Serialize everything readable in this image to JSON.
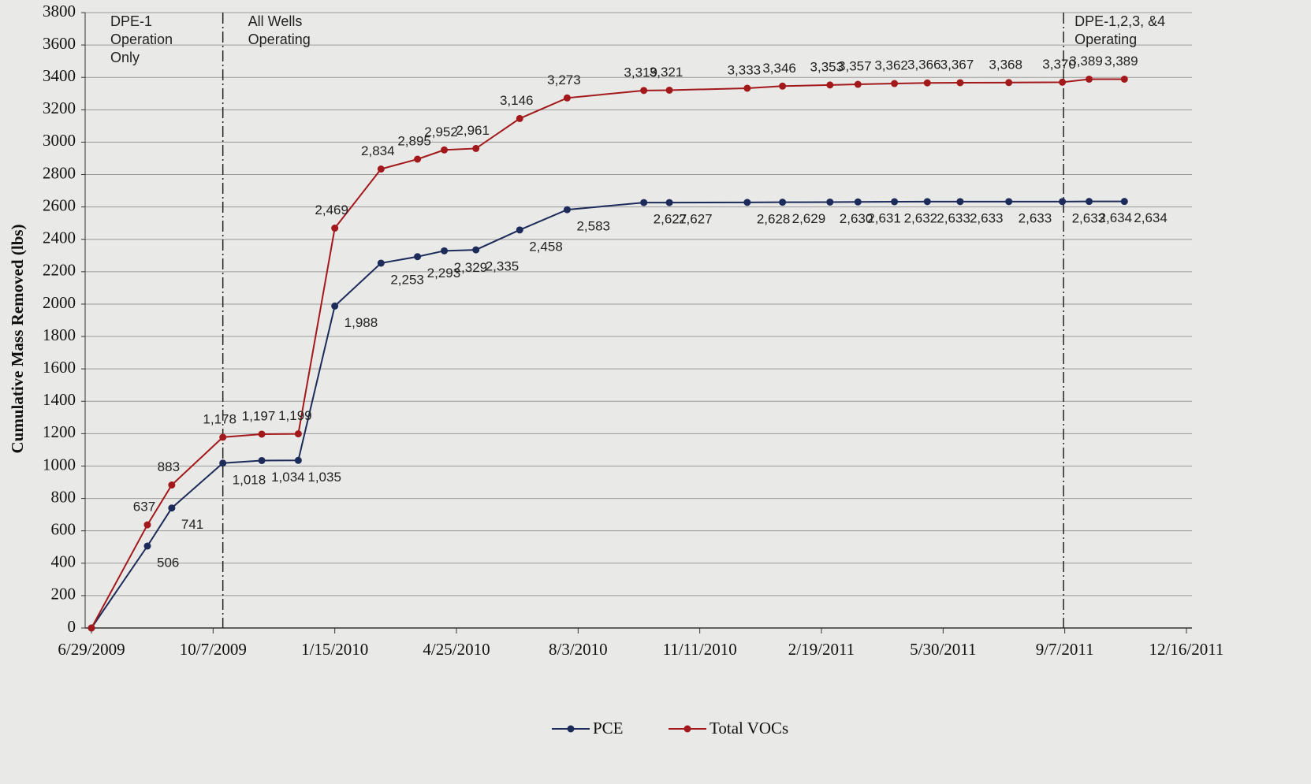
{
  "chart_data": {
    "type": "line",
    "y_label": "Cumulative Mass Removed (lbs)",
    "x": [
      "6/29/2009",
      "8/14/2009",
      "9/3/2009",
      "10/15/2009",
      "11/16/2009",
      "12/16/2009",
      "1/15/2010",
      "2/22/2010",
      "3/24/2010",
      "4/15/2010",
      "5/11/2010",
      "6/16/2010",
      "7/25/2010",
      "9/26/2010",
      "10/17/2010",
      "12/20/2010",
      "1/18/2011",
      "2/26/2011",
      "3/21/2011",
      "4/20/2011",
      "5/17/2011",
      "6/13/2011",
      "7/23/2011",
      "9/5/2011",
      "9/27/2011",
      "10/26/2011"
    ],
    "series": [
      {
        "name": "PCE",
        "color": "#1c2b5a",
        "values": [
          0,
          506,
          741,
          1018,
          1034,
          1035,
          1988,
          2253,
          2293,
          2329,
          2335,
          2458,
          2583,
          2627,
          2627,
          2628,
          2629,
          2630,
          2631,
          2632,
          2633,
          2633,
          2633,
          2633,
          2634,
          2634
        ],
        "value_labels": [
          null,
          "506",
          "741",
          "1,018",
          "1,034",
          "1,035",
          "1,988",
          "2,253",
          "2,293",
          "2,329",
          "2,335",
          "2,458",
          "2,583",
          "2,627",
          "2,627",
          "2,628",
          "2,629",
          "2,630",
          "2,631",
          "2,632",
          "2,633",
          "2,633",
          "2,633",
          "2,633",
          "2,634",
          "2,634"
        ]
      },
      {
        "name": "Total VOCs",
        "color": "#a3191b",
        "values": [
          0,
          637,
          883,
          1178,
          1197,
          1199,
          2469,
          2834,
          2895,
          2952,
          2961,
          3146,
          3273,
          3319,
          3321,
          3333,
          3346,
          3353,
          3357,
          3362,
          3366,
          3367,
          3368,
          3370,
          3389,
          3389
        ],
        "value_labels": [
          null,
          "637",
          "883",
          "1,178",
          "1,197",
          "1,199",
          "2,469",
          "2,834",
          "2,895",
          "2,952",
          "2,961",
          "3,146",
          "3,273",
          "3,319",
          "3,321",
          "3,333",
          "3,346",
          "3,353",
          "3,357",
          "3,362",
          "3,366",
          "3,367",
          "3,368",
          "3,370",
          "3,389",
          "3,389"
        ]
      }
    ],
    "xlim": [
      "6/29/2009",
      "12/16/2011"
    ],
    "xticks": [
      "6/29/2009",
      "10/7/2009",
      "1/15/2010",
      "4/25/2010",
      "8/3/2010",
      "11/11/2010",
      "2/19/2011",
      "5/30/2011",
      "9/7/2011",
      "12/16/2011"
    ],
    "ylim": [
      0,
      3800
    ],
    "yticks": [
      0,
      200,
      400,
      600,
      800,
      1000,
      1200,
      1400,
      1600,
      1800,
      2000,
      2200,
      2400,
      2600,
      2800,
      3000,
      3200,
      3400,
      3600,
      3800
    ],
    "grid": true,
    "legend": "bottom",
    "event_lines": [
      "10/15/2009",
      "9/6/2011"
    ],
    "annotations": [
      [
        "DPE-1",
        "Operation",
        "Only"
      ],
      [
        "All Wells",
        "Operating"
      ],
      [
        "DPE-1,2,3, &4",
        "Operating"
      ]
    ]
  }
}
